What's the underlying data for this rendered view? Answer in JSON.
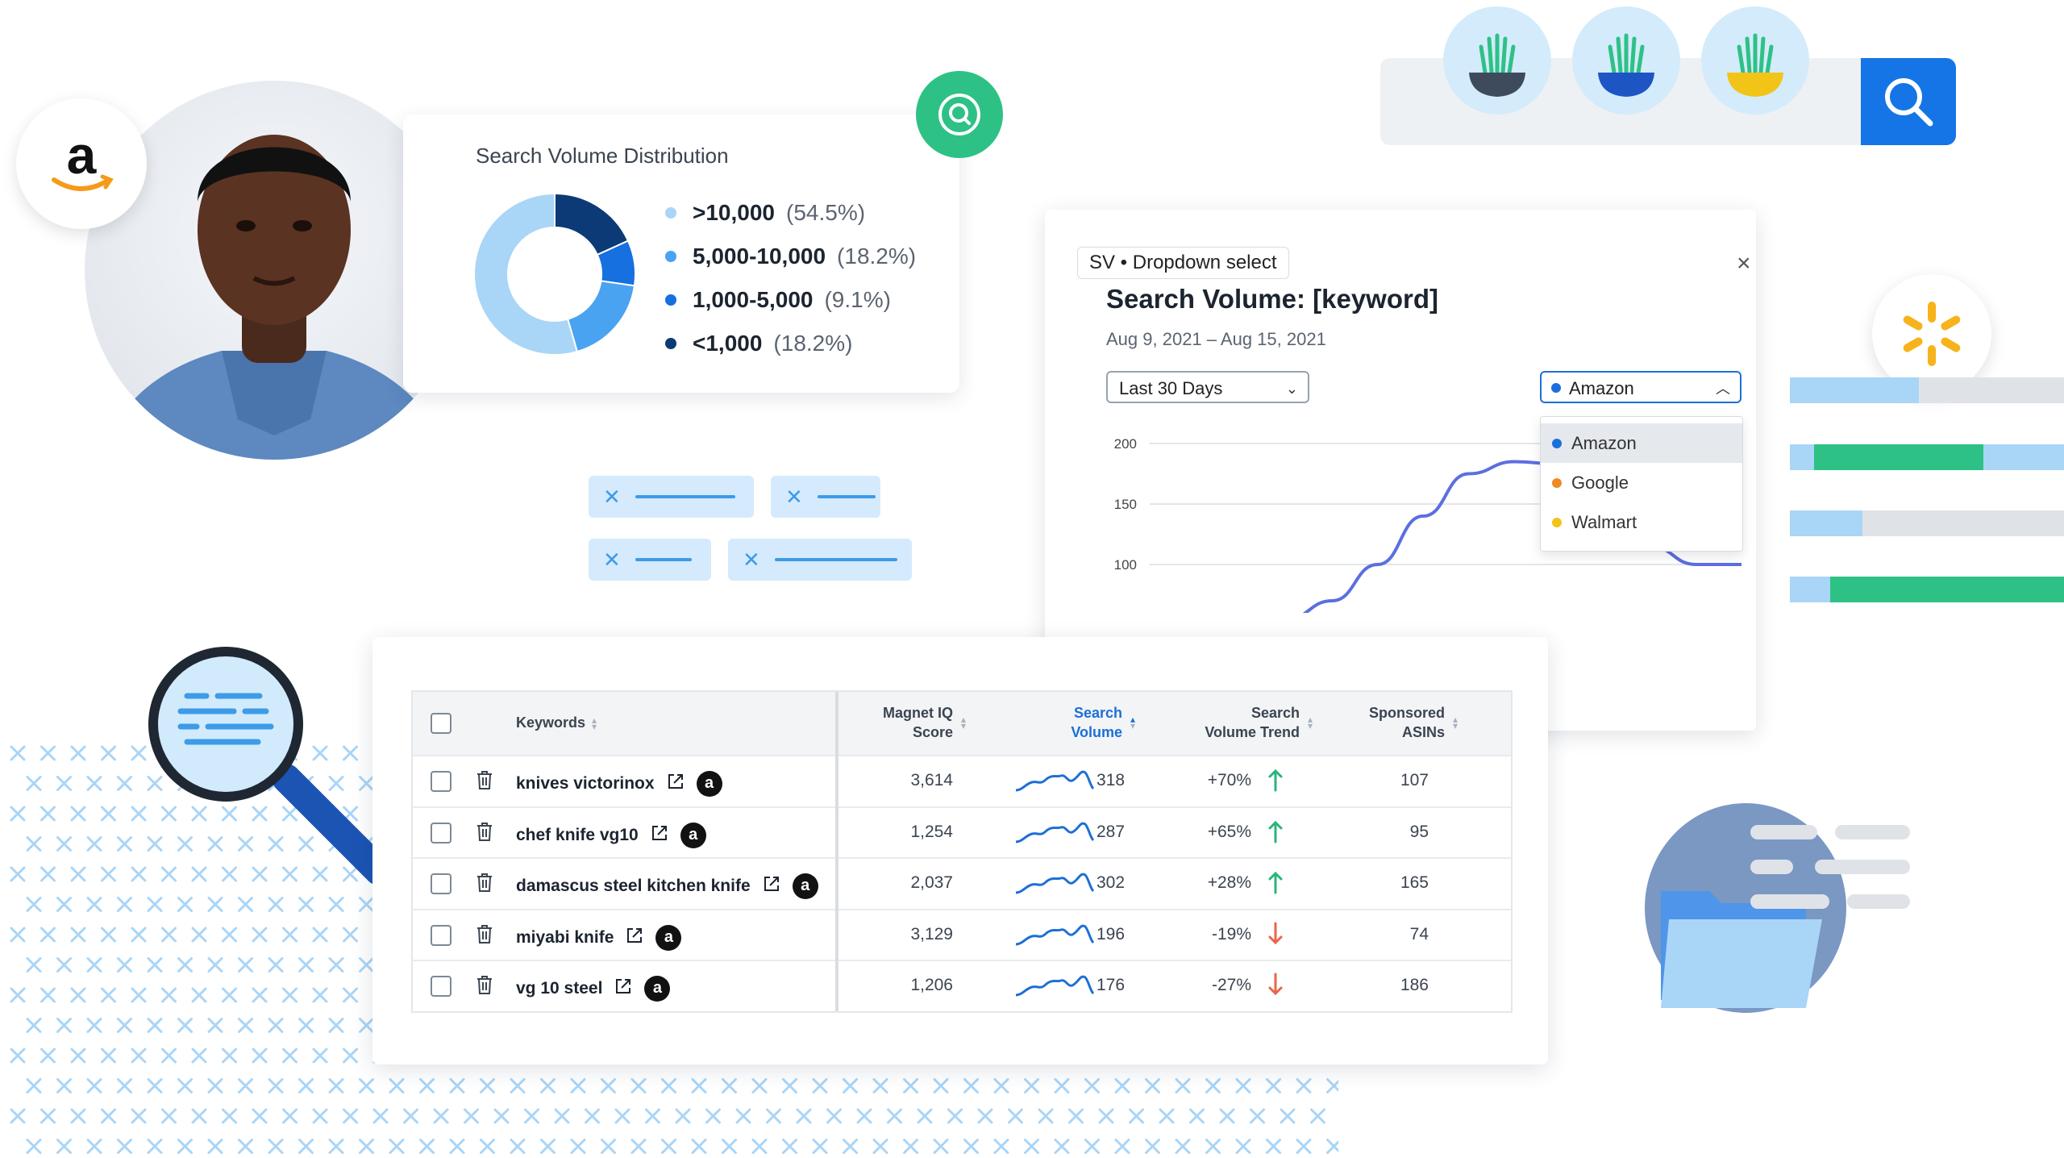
{
  "distribution": {
    "title": "Search Volume Distribution",
    "legend": [
      {
        "range": ">10,000",
        "pct": "(54.5%)",
        "color": "#a9d5f7",
        "share": 54.5
      },
      {
        "range": "5,000-10,000",
        "pct": "(18.2%)",
        "color": "#4aa3f0",
        "share": 18.2
      },
      {
        "range": "1,000-5,000",
        "pct": "(9.1%)",
        "color": "#1670e0",
        "share": 9.1
      },
      {
        "range": "<1,000",
        "pct": "(18.2%)",
        "color": "#0b3a77",
        "share": 18.2
      }
    ]
  },
  "sv_card": {
    "tag": "SV • Dropdown select",
    "title": "Search Volume: [keyword]",
    "dates": "Aug 9, 2021 – Aug 15, 2021",
    "range_select": "Last 30 Days",
    "source_select": "Amazon",
    "close": "×",
    "menu": [
      {
        "label": "Amazon",
        "color": "#1a6fdc"
      },
      {
        "label": "Google",
        "color": "#f08a24"
      },
      {
        "label": "Walmart",
        "color": "#f2c417"
      }
    ],
    "yticks": [
      "200",
      "150",
      "100"
    ]
  },
  "chart_data": {
    "type": "line",
    "yticks": [
      200,
      150,
      100
    ],
    "series": [
      {
        "values": [
          55,
          70,
          100,
          140,
          175,
          185,
          183,
          150,
          115,
          100,
          100
        ]
      }
    ]
  },
  "table": {
    "headers": {
      "keywords": "Keywords",
      "score_1": "Magnet IQ",
      "score_2": "Score",
      "sv_1": "Search",
      "sv_2": "Volume",
      "trend_1": "Search",
      "trend_2": "Volume Trend",
      "asins_1": "Sponsored",
      "asins_2": "ASINs"
    },
    "rows": [
      {
        "keyword": "knives victorinox",
        "score": "3,614",
        "volume": "318",
        "trend": "+70%",
        "dir": "up",
        "asins": "107"
      },
      {
        "keyword": "chef knife vg10",
        "score": "1,254",
        "volume": "287",
        "trend": "+65%",
        "dir": "up",
        "asins": "95"
      },
      {
        "keyword": "damascus steel kitchen knife",
        "score": "2,037",
        "volume": "302",
        "trend": "+28%",
        "dir": "up",
        "asins": "165"
      },
      {
        "keyword": "miyabi knife",
        "score": "3,129",
        "volume": "196",
        "trend": "-19%",
        "dir": "down",
        "asins": "74"
      },
      {
        "keyword": "vg 10 steel",
        "score": "1,206",
        "volume": "176",
        "trend": "-27%",
        "dir": "down",
        "asins": "186"
      }
    ],
    "amazon_badge": "a"
  },
  "colors": {
    "accent": "#1575e6",
    "green": "#2ec186",
    "up": "#2ab57a",
    "down": "#e8664a",
    "line": "#5b6fe0"
  }
}
